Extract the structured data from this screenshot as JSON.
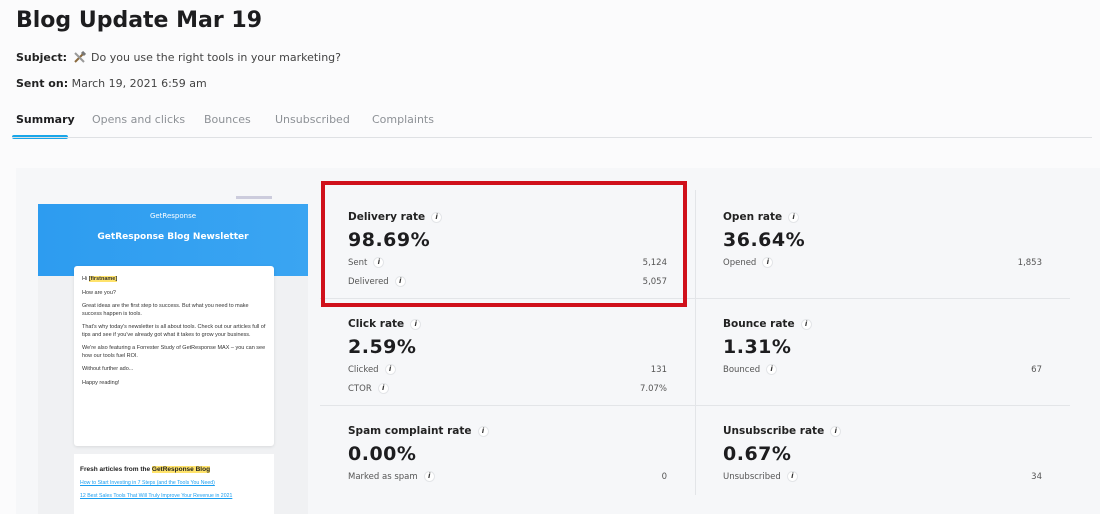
{
  "header": {
    "title": "Blog Update Mar 19",
    "subject_label": "Subject:",
    "subject": "Do you use the right tools in your marketing?",
    "sent_label": "Sent on:",
    "sent": "March 19, 2021 6:59 am"
  },
  "tabs": [
    "Summary",
    "Opens and clicks",
    "Bounces",
    "Unsubscribed",
    "Complaints"
  ],
  "preview": {
    "brand": "GetResponse",
    "banner_title": "GetResponse Blog Newsletter",
    "greeting": "Hi",
    "greeting_name": "[firstname]",
    "paragraphs": [
      "How are you?",
      "Great ideas are the first step to success. But what you need to make success happen is tools.",
      "That's why today's newsletter is all about tools. Check out our articles full of tips and see if you've already got what it takes to grow your business.",
      "We're also featuring a Forrester Study of GetResponse MAX – you can see how our tools fuel ROI.",
      "Without further ado...",
      "Happy reading!"
    ],
    "articles_intro": "Fresh articles from the",
    "articles_brand": "GetResponse Blog",
    "articles": [
      "How to Start Investing in 7 Steps (and the Tools You Need)",
      "12 Best Sales Tools That Will Truly Improve Your Revenue in 2021"
    ]
  },
  "metrics": [
    {
      "title": "Delivery rate",
      "value": "98.69%",
      "rows": [
        {
          "label": "Sent",
          "value": "5,124"
        },
        {
          "label": "Delivered",
          "value": "5,057"
        }
      ]
    },
    {
      "title": "Open rate",
      "value": "36.64%",
      "rows": [
        {
          "label": "Opened",
          "value": "1,853"
        }
      ]
    },
    {
      "title": "Click rate",
      "value": "2.59%",
      "rows": [
        {
          "label": "Clicked",
          "value": "131"
        },
        {
          "label": "CTOR",
          "value": "7.07%"
        }
      ]
    },
    {
      "title": "Bounce rate",
      "value": "1.31%",
      "rows": [
        {
          "label": "Bounced",
          "value": "67"
        }
      ]
    },
    {
      "title": "Spam complaint rate",
      "value": "0.00%",
      "rows": [
        {
          "label": "Marked as spam",
          "value": "0"
        }
      ]
    },
    {
      "title": "Unsubscribe rate",
      "value": "0.67%",
      "rows": [
        {
          "label": "Unsubscribed",
          "value": "34"
        }
      ]
    }
  ]
}
